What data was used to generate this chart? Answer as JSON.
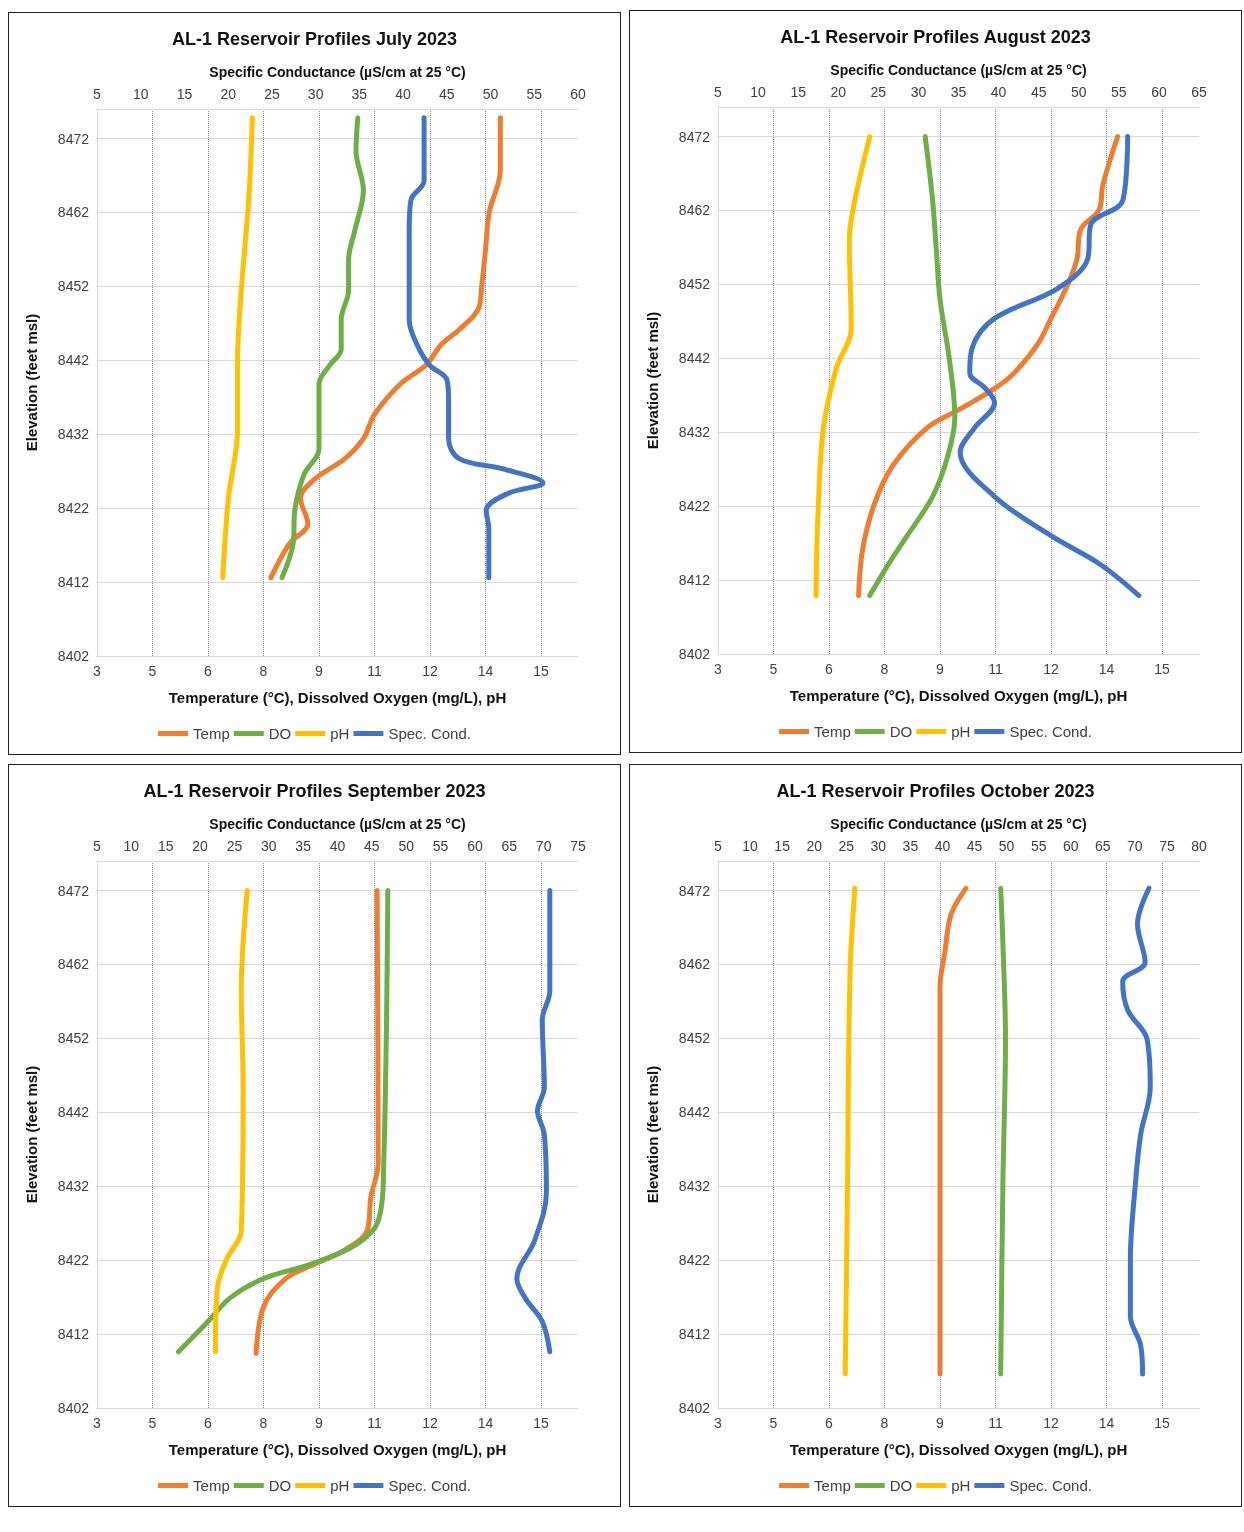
{
  "chart_data": [
    {
      "type": "line",
      "title": "AL-1 Reservoir Profiles July 2023",
      "xlabel": "Temperature (°C), Dissolved Oxygen (mg/L), pH",
      "x2label": "Specific Conductance (µS/cm at 25 °C)",
      "ylabel": "Elevation (feet msl)",
      "xlim": [
        3,
        16
      ],
      "xticks": [
        3,
        {
          "value": 4.5,
          "label": "5"
        },
        6,
        {
          "value": 7.5,
          "label": "8"
        },
        9,
        {
          "value": 10.5,
          "label": "11"
        },
        12,
        {
          "value": 13.5,
          "label": "14"
        },
        15
      ],
      "x2lim": [
        5,
        60
      ],
      "x2ticks": [
        5,
        10,
        15,
        20,
        25,
        30,
        35,
        40,
        45,
        50,
        55,
        60
      ],
      "ylim": [
        8402,
        8476
      ],
      "yticks": [
        8402,
        8412,
        8422,
        8432,
        8442,
        8452,
        8462,
        8472
      ],
      "grid": true,
      "legend": "bottom",
      "series": [
        {
          "name": "Temp",
          "color": "#ed7d31",
          "x": [
            13.9,
            13.9,
            13.6,
            13.5,
            13.4,
            13.3,
            12.8,
            12.3,
            11.9,
            11.2,
            10.5,
            10.2,
            9.7,
            8.9,
            8.5,
            8.7,
            8.2,
            7.7
          ],
          "values": [
            8474.8,
            8467.7,
            8462.0,
            8456.9,
            8452.2,
            8448.9,
            8446.2,
            8444.1,
            8441.4,
            8438.8,
            8434.7,
            8431.4,
            8428.7,
            8426.0,
            8423.3,
            8419.9,
            8417.2,
            8412.6
          ]
        },
        {
          "name": "DO",
          "color": "#70ad47",
          "x": [
            10.05,
            10.0,
            10.2,
            9.97,
            9.8,
            9.8,
            9.6,
            9.6,
            9.3,
            9.0,
            9.0,
            9.0,
            8.6,
            8.35,
            8.3,
            8.0
          ],
          "values": [
            8474.8,
            8470.4,
            8465.0,
            8459.6,
            8455.6,
            8451.5,
            8447.5,
            8443.5,
            8441.4,
            8438.8,
            8434.0,
            8430.0,
            8426.6,
            8421.9,
            8417.2,
            8412.6
          ]
        },
        {
          "name": "pH",
          "color": "#ffc000",
          "x": [
            7.2,
            7.1,
            6.9,
            6.8,
            6.8,
            6.55,
            6.4
          ],
          "values": [
            8474.8,
            8463.7,
            8451.5,
            8442.1,
            8432.7,
            8423.3,
            8412.6
          ]
        },
        {
          "name": "Spec. Cond.",
          "color": "#4472c4",
          "axis": "x2",
          "x": [
            42.4,
            42.4,
            40.9,
            40.7,
            40.7,
            41.6,
            43.0,
            45.0,
            45.2,
            45.2,
            46.4,
            51.5,
            56.0,
            52.0,
            49.5,
            49.8,
            49.8
          ],
          "values": [
            8474.8,
            8466.3,
            8463.7,
            8459.6,
            8447.5,
            8444.1,
            8441.4,
            8439.4,
            8436.8,
            8431.4,
            8428.7,
            8427.3,
            8425.4,
            8424.0,
            8421.7,
            8419.2,
            8412.6
          ]
        }
      ]
    },
    {
      "type": "line",
      "title": "AL-1 Reservoir Profiles August 2023",
      "xlabel": "Temperature (°C), Dissolved Oxygen (mg/L), pH",
      "x2label": "Specific Conductance (µS/cm at 25 °C)",
      "ylabel": "Elevation (feet msl)",
      "xlim": [
        3,
        16
      ],
      "xticks": [
        3,
        {
          "value": 4.5,
          "label": "5"
        },
        6,
        {
          "value": 7.5,
          "label": "8"
        },
        9,
        {
          "value": 10.5,
          "label": "11"
        },
        12,
        {
          "value": 13.5,
          "label": "14"
        },
        15
      ],
      "x2lim": [
        5,
        65
      ],
      "x2ticks": [
        5,
        10,
        15,
        20,
        25,
        30,
        35,
        40,
        45,
        50,
        55,
        60,
        65
      ],
      "ylim": [
        8402,
        8476
      ],
      "yticks": [
        8402,
        8412,
        8422,
        8432,
        8442,
        8452,
        8462,
        8472
      ],
      "grid": true,
      "legend": "bottom",
      "series": [
        {
          "name": "Temp",
          "color": "#ed7d31",
          "x": [
            13.8,
            13.4,
            13.3,
            12.8,
            12.7,
            12.4,
            12.0,
            11.65,
            11.0,
            10.5,
            9.6,
            8.65,
            7.7,
            7.2,
            6.9,
            6.8
          ],
          "values": [
            8472.0,
            8465.4,
            8462.1,
            8459.4,
            8455.4,
            8451.4,
            8447.4,
            8444.0,
            8440.0,
            8438.0,
            8435.3,
            8432.6,
            8427.3,
            8421.9,
            8415.9,
            8409.9
          ]
        },
        {
          "name": "DO",
          "color": "#70ad47",
          "x": [
            8.6,
            8.8,
            8.9,
            9.0,
            9.25,
            9.4,
            9.2,
            8.8,
            8.1,
            7.6,
            7.1
          ],
          "values": [
            8472.0,
            8463.4,
            8456.7,
            8450.0,
            8442.0,
            8434.0,
            8428.6,
            8423.3,
            8417.9,
            8414.1,
            8409.9
          ]
        },
        {
          "name": "pH",
          "color": "#ffc000",
          "x": [
            7.1,
            6.7,
            6.55,
            6.6,
            6.2,
            5.85,
            5.7,
            5.65
          ],
          "values": [
            8472.0,
            8463.4,
            8458.1,
            8446.0,
            8440.7,
            8432.6,
            8420.6,
            8409.9
          ]
        },
        {
          "name": "Spec. Cond.",
          "color": "#4472c4",
          "axis": "x2",
          "x": [
            56.1,
            55.5,
            51.5,
            51.1,
            47.3,
            39.5,
            36.7,
            36.4,
            38.3,
            39.5,
            37.0,
            35.2,
            39.5,
            46.7,
            52.7,
            57.5
          ],
          "values": [
            8472.0,
            8463.4,
            8460.1,
            8455.4,
            8451.4,
            8447.4,
            8443.4,
            8440.0,
            8438.0,
            8436.0,
            8432.6,
            8429.3,
            8423.3,
            8417.9,
            8414.1,
            8409.9
          ]
        }
      ]
    },
    {
      "type": "line",
      "title": "AL-1 Reservoir Profiles September 2023",
      "xlabel": "Temperature (°C), Dissolved Oxygen (mg/L), pH",
      "x2label": "Specific Conductance (µS/cm at 25 °C)",
      "ylabel": "Elevation (feet msl)",
      "xlim": [
        3,
        16
      ],
      "xticks": [
        3,
        {
          "value": 4.5,
          "label": "5"
        },
        6,
        {
          "value": 7.5,
          "label": "8"
        },
        9,
        {
          "value": 10.5,
          "label": "11"
        },
        12,
        {
          "value": 13.5,
          "label": "14"
        },
        15
      ],
      "x2lim": [
        5,
        75
      ],
      "x2ticks": [
        5,
        10,
        15,
        20,
        25,
        30,
        35,
        40,
        45,
        50,
        55,
        60,
        65,
        70,
        75
      ],
      "ylim": [
        8402,
        8476
      ],
      "yticks": [
        8402,
        8412,
        8422,
        8432,
        8442,
        8452,
        8462,
        8472
      ],
      "grid": true,
      "legend": "bottom",
      "series": [
        {
          "name": "Temp",
          "color": "#ed7d31",
          "x": [
            10.57,
            10.6,
            10.4,
            10.3,
            9.7,
            8.9,
            8.1,
            7.5,
            7.3
          ],
          "values": [
            8472.0,
            8435.1,
            8430.5,
            8426.0,
            8423.4,
            8421.5,
            8419.5,
            8415.7,
            8409.4
          ]
        },
        {
          "name": "DO",
          "color": "#70ad47",
          "x": [
            10.86,
            10.75,
            10.6,
            10.0,
            8.8,
            7.5,
            6.6,
            6.0,
            5.2
          ],
          "values": [
            8472.0,
            8435.1,
            8427.3,
            8424.1,
            8421.5,
            8419.5,
            8416.9,
            8413.7,
            8409.6
          ]
        },
        {
          "name": "pH",
          "color": "#ffc000",
          "x": [
            7.06,
            6.9,
            6.95,
            6.9,
            6.5,
            6.25,
            6.2
          ],
          "values": [
            8472.0,
            8458.4,
            8445.4,
            8426.0,
            8422.1,
            8418.2,
            8409.6
          ]
        },
        {
          "name": "Spec. Cond.",
          "color": "#4472c4",
          "axis": "x2",
          "x": [
            70.9,
            70.9,
            69.8,
            70.1,
            69.1,
            70.1,
            70.4,
            68.7,
            66.1,
            67.3,
            69.8,
            70.9
          ],
          "values": [
            8472.0,
            8458.4,
            8454.5,
            8445.4,
            8442.2,
            8439.0,
            8431.2,
            8424.7,
            8419.5,
            8416.9,
            8413.7,
            8409.6
          ]
        }
      ]
    },
    {
      "type": "line",
      "title": "AL-1 Reservoir Profiles October 2023",
      "xlabel": "Temperature (°C), Dissolved Oxygen (mg/L), pH",
      "x2label": "Specific Conductance (µS/cm at 25 °C)",
      "ylabel": "Elevation (feet msl)",
      "xlim": [
        3,
        16
      ],
      "xticks": [
        3,
        {
          "value": 4.5,
          "label": "5"
        },
        6,
        {
          "value": 7.5,
          "label": "8"
        },
        9,
        {
          "value": 10.5,
          "label": "11"
        },
        12,
        {
          "value": 13.5,
          "label": "14"
        },
        15
      ],
      "x2lim": [
        5,
        80
      ],
      "x2ticks": [
        5,
        10,
        15,
        20,
        25,
        30,
        35,
        40,
        45,
        50,
        55,
        60,
        65,
        70,
        75,
        80
      ],
      "ylim": [
        8402,
        8476
      ],
      "yticks": [
        8402,
        8412,
        8422,
        8432,
        8442,
        8452,
        8462,
        8472
      ],
      "grid": true,
      "legend": "bottom",
      "series": [
        {
          "name": "Temp",
          "color": "#ed7d31",
          "x": [
            9.7,
            9.3,
            9.13,
            9.0,
            9.0
          ],
          "values": [
            8472.3,
            8468.8,
            8463.6,
            8459.0,
            8406.6
          ]
        },
        {
          "name": "DO",
          "color": "#70ad47",
          "x": [
            10.64,
            10.7,
            10.77,
            10.7,
            10.64
          ],
          "values": [
            8472.3,
            8464.9,
            8451.9,
            8432.5,
            8406.6
          ]
        },
        {
          "name": "pH",
          "color": "#ffc000",
          "x": [
            6.7,
            6.57,
            6.5,
            6.44
          ],
          "values": [
            8472.3,
            8461.0,
            8432.5,
            8406.6
          ]
        },
        {
          "name": "Spec. Cond.",
          "color": "#4472c4",
          "axis": "x2",
          "x": [
            72.2,
            70.4,
            71.6,
            68.1,
            68.9,
            71.9,
            72.4,
            70.9,
            70.1,
            69.3,
            69.3,
            70.9,
            71.2
          ],
          "values": [
            8472.3,
            8467.5,
            8462.3,
            8459.7,
            8455.8,
            8451.9,
            8445.4,
            8439.0,
            8432.5,
            8422.1,
            8414.4,
            8410.5,
            8406.6
          ]
        }
      ]
    }
  ]
}
